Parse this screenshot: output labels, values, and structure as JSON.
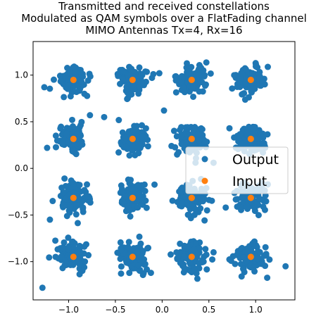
{
  "chart_data": {
    "type": "scatter",
    "title_lines": [
      "Transmitted and received constellations",
      "Modulated as QAM symbols over a FlatFading channel",
      "MIMO Antennas Tx=4, Rx=16"
    ],
    "xlabel": "",
    "ylabel": "",
    "xlim": [
      -1.38,
      1.42
    ],
    "ylim": [
      -1.41,
      1.36
    ],
    "x_ticks": [
      -1.0,
      -0.5,
      0.0,
      0.5,
      1.0
    ],
    "x_tick_labels": [
      "−1.0",
      "−0.5",
      "0.0",
      "0.5",
      "1.0"
    ],
    "y_ticks": [
      -1.0,
      -0.5,
      0.0,
      0.5,
      1.0
    ],
    "y_tick_labels": [
      "−1.0",
      "−0.5",
      "0.0",
      "0.5",
      "1.0"
    ],
    "grid": false,
    "legend_position": "center-right",
    "constellation_levels": [
      -0.9487,
      -0.3162,
      0.3162,
      0.9487
    ],
    "series": [
      {
        "name": "Output",
        "color": "#1f77b4",
        "marker": "circle",
        "points_per_symbol": 110,
        "spread_sigma": 0.075,
        "outliers": [
          [
            -1.26,
            0.87
          ],
          [
            -1.28,
            -1.28
          ],
          [
            1.32,
            -1.05
          ],
          [
            -1.23,
            0.22
          ],
          [
            0.72,
            0.43
          ],
          [
            0.68,
            -0.42
          ],
          [
            0.55,
            0.06
          ],
          [
            -1.2,
            -0.55
          ],
          [
            -0.12,
            -1.12
          ],
          [
            0.02,
            0.62
          ],
          [
            -0.62,
            0.55
          ],
          [
            0.1,
            0.24
          ],
          [
            -0.03,
            1.02
          ],
          [
            0.55,
            -0.9
          ]
        ]
      },
      {
        "name": "Input",
        "color": "#ff7f0e",
        "marker": "circle",
        "points": [
          [
            -0.9487,
            -0.9487
          ],
          [
            -0.9487,
            -0.3162
          ],
          [
            -0.9487,
            0.3162
          ],
          [
            -0.9487,
            0.9487
          ],
          [
            -0.3162,
            -0.9487
          ],
          [
            -0.3162,
            -0.3162
          ],
          [
            -0.3162,
            0.3162
          ],
          [
            -0.3162,
            0.9487
          ],
          [
            0.3162,
            -0.9487
          ],
          [
            0.3162,
            -0.3162
          ],
          [
            0.3162,
            0.3162
          ],
          [
            0.3162,
            0.9487
          ],
          [
            0.9487,
            -0.9487
          ],
          [
            0.9487,
            -0.3162
          ],
          [
            0.9487,
            0.3162
          ],
          [
            0.9487,
            0.9487
          ]
        ]
      }
    ]
  }
}
